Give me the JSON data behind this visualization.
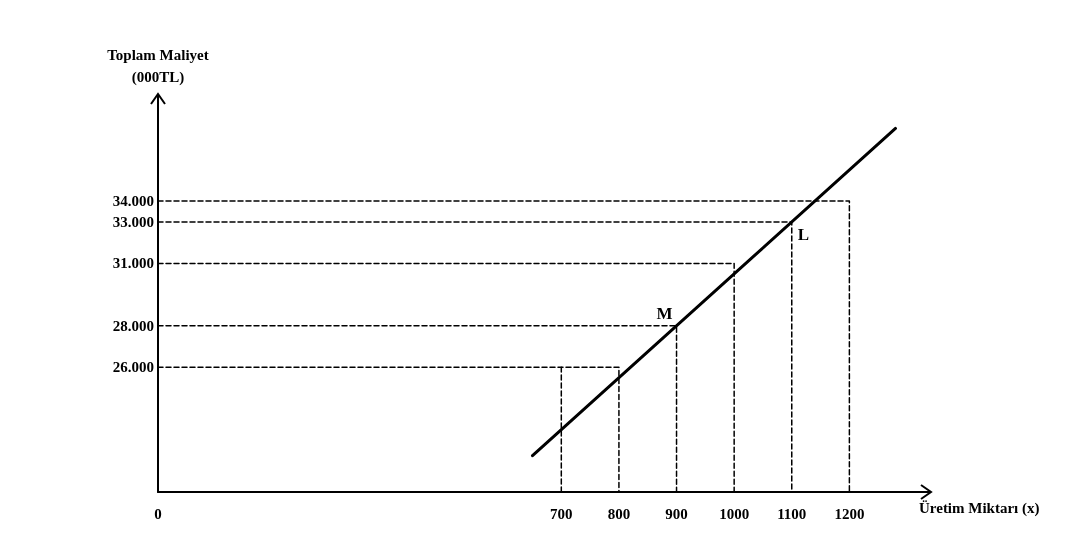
{
  "chart_data": {
    "type": "line",
    "xlabel": "Üretim Miktarı (x)",
    "ylabel": "Toplam Maliyet\n(000TL)",
    "xlim": [
      0,
      1300
    ],
    "ylim": [
      20000,
      38000
    ],
    "xticks": [
      0,
      700,
      800,
      900,
      1000,
      1100,
      1200
    ],
    "yticks": [
      {
        "value": 26000,
        "label": "26.000"
      },
      {
        "value": 28000,
        "label": "28.000"
      },
      {
        "value": 31000,
        "label": "31.000"
      },
      {
        "value": 33000,
        "label": "33.000"
      },
      {
        "value": 34000,
        "label": "34.000"
      }
    ],
    "marker": "none",
    "series": [
      {
        "color": "#000000",
        "line_style": "solid",
        "x": [
          650,
          1280
        ],
        "values": [
          21750,
          37500
        ]
      },
      {
        "color": "#000000",
        "line_style": "dashed",
        "x": [
          0,
          800,
          800
        ],
        "values": [
          26000,
          26000,
          20000
        ]
      },
      {
        "color": "#000000",
        "line_style": "dashed",
        "x": [
          700,
          700
        ],
        "values": [
          20000,
          26000
        ]
      },
      {
        "color": "#000000",
        "line_style": "dashed",
        "x": [
          0,
          900,
          900
        ],
        "values": [
          28000,
          28000,
          20000
        ]
      },
      {
        "color": "#000000",
        "line_style": "dashed",
        "x": [
          0,
          1000,
          1000
        ],
        "values": [
          31000,
          31000,
          20000
        ]
      },
      {
        "color": "#000000",
        "line_style": "dashed",
        "x": [
          0,
          1100,
          1100
        ],
        "values": [
          33000,
          33000,
          20000
        ]
      },
      {
        "color": "#000000",
        "line_style": "dashed",
        "x": [
          0,
          1200,
          1200
        ],
        "values": [
          34000,
          34000,
          20000
        ]
      }
    ],
    "annotations": [
      {
        "text": "M",
        "x": 900,
        "y": 28000
      },
      {
        "text": "L",
        "x": 1100,
        "y": 33000
      }
    ]
  }
}
